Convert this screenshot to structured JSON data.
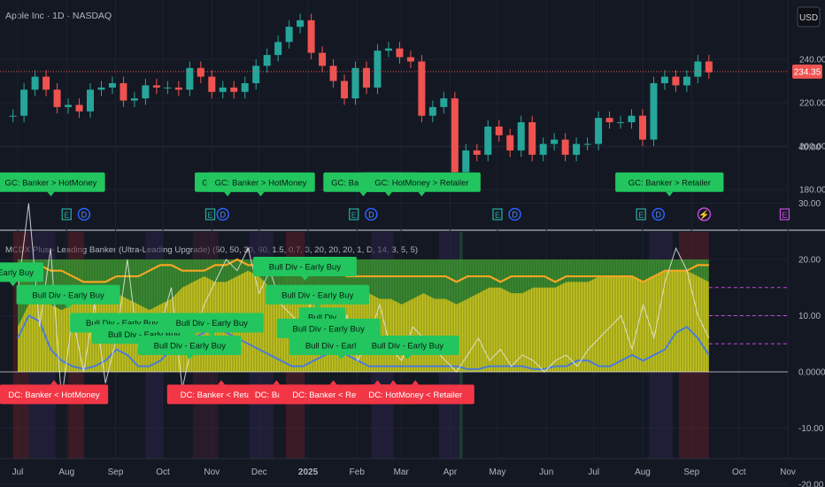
{
  "symbol_title": "Apple Inc · 1D · NASDAQ",
  "currency_button": "USD",
  "indicator_title": "MCDX Plus - Leading Banker (Ultra-Leading Upgrade) (50, 50, 30, 60, 1.5, 0.7, 3, 20, 20, 20, 1, D, 14, 3, 5, 5)",
  "colors": {
    "background": "#141823",
    "candle_up": "#26a69a",
    "candle_down": "#ef5350",
    "price_line": "#ef5350",
    "banker_fill": "#c9c41f",
    "banker_band": "#3f9b33",
    "hotmoney_line": "#f5a623",
    "retailer_line": "#4a7bd8",
    "gc_label": "#22c55e",
    "dc_label": "#f23645"
  },
  "event_icons": [
    {
      "type": "earnings-icon",
      "glyph": "E",
      "date": "2024-08-01"
    },
    {
      "type": "dividend-icon",
      "glyph": "D",
      "date": "2024-08-12"
    },
    {
      "type": "earnings-icon",
      "glyph": "E",
      "date": "2024-10-31"
    },
    {
      "type": "dividend-icon",
      "glyph": "D",
      "date": "2024-11-08"
    },
    {
      "type": "earnings-icon",
      "glyph": "E",
      "date": "2025-01-30"
    },
    {
      "type": "dividend-icon",
      "glyph": "D",
      "date": "2025-02-10"
    },
    {
      "type": "earnings-icon",
      "glyph": "E",
      "date": "2025-05-01"
    },
    {
      "type": "dividend-icon",
      "glyph": "D",
      "date": "2025-05-12"
    },
    {
      "type": "earnings-icon",
      "glyph": "E",
      "date": "2025-07-31"
    },
    {
      "type": "dividend-icon",
      "glyph": "D",
      "date": "2025-08-11"
    },
    {
      "type": "event-icon",
      "glyph": "⚡",
      "date": "2025-09-09"
    },
    {
      "type": "future-earnings-icon",
      "glyph": "E",
      "date": "2025-10-30"
    }
  ],
  "chart_data": [
    {
      "type": "candlestick",
      "title": "Apple Inc · 1D · NASDAQ",
      "x": [
        "2024-06-28",
        "2024-07-05",
        "2024-07-12",
        "2024-07-19",
        "2024-07-26",
        "2024-08-02",
        "2024-08-09",
        "2024-08-16",
        "2024-08-23",
        "2024-08-30",
        "2024-09-06",
        "2024-09-13",
        "2024-09-20",
        "2024-09-27",
        "2024-10-04",
        "2024-10-11",
        "2024-10-18",
        "2024-10-25",
        "2024-11-01",
        "2024-11-08",
        "2024-11-15",
        "2024-11-22",
        "2024-11-29",
        "2024-12-06",
        "2024-12-13",
        "2024-12-20",
        "2024-12-27",
        "2025-01-03",
        "2025-01-10",
        "2025-01-17",
        "2025-01-24",
        "2025-01-31",
        "2025-02-07",
        "2025-02-14",
        "2025-02-21",
        "2025-02-28",
        "2025-03-07",
        "2025-03-14",
        "2025-03-21",
        "2025-03-28",
        "2025-04-04",
        "2025-04-11",
        "2025-04-18",
        "2025-04-25",
        "2025-05-02",
        "2025-05-09",
        "2025-05-16",
        "2025-05-23",
        "2025-05-30",
        "2025-06-06",
        "2025-06-13",
        "2025-06-20",
        "2025-06-27",
        "2025-07-04",
        "2025-07-11",
        "2025-07-18",
        "2025-07-25",
        "2025-08-01",
        "2025-08-08",
        "2025-08-15",
        "2025-08-22",
        "2025-08-29",
        "2025-09-05",
        "2025-09-12"
      ],
      "close": [
        214,
        226,
        232,
        226,
        218,
        219,
        216,
        226,
        227,
        229,
        221,
        222,
        228,
        227,
        227,
        226,
        236,
        232,
        225,
        227,
        225,
        229,
        237,
        242,
        248,
        255,
        258,
        243,
        237,
        230,
        222,
        236,
        227,
        244,
        245,
        241,
        239,
        214,
        218,
        222,
        188,
        198,
        196,
        209,
        205,
        198,
        211,
        196,
        201,
        203,
        196,
        201,
        201,
        213,
        211,
        211,
        214,
        203,
        229,
        232,
        228,
        232,
        239,
        234
      ]
    },
    {
      "type": "indicator",
      "title": "MCDX Plus - Leading Banker (Ultra-Leading Upgrade) (50, 50, 30, 60, 1.5, 0.7, 3, 20, 20, 20, 1, D, 14, 3, 5, 5)",
      "x_ticks": [
        "Jul",
        "Aug",
        "Sep",
        "Oct",
        "Nov",
        "Dec",
        "2025",
        "Feb",
        "Mar",
        "Apr",
        "May",
        "Jun",
        "Jul",
        "Aug",
        "Sep",
        "Oct",
        "Nov"
      ],
      "banker": [
        8,
        12,
        13,
        12,
        11,
        12,
        13,
        13,
        14,
        14,
        13,
        12,
        11,
        12,
        13,
        15,
        16,
        17,
        16,
        16,
        17,
        18,
        17,
        15,
        14,
        13,
        13,
        12,
        13,
        14,
        15,
        15,
        14,
        13,
        13,
        12,
        13,
        14,
        13,
        13,
        12,
        13,
        14,
        15,
        15,
        14,
        14,
        15,
        15,
        15,
        16,
        16,
        16,
        17,
        17,
        17,
        17,
        16,
        17,
        18,
        18,
        18,
        17,
        16
      ],
      "hotmoney": [
        17,
        19,
        19,
        18,
        18,
        17,
        16,
        16,
        16,
        17,
        17,
        17,
        18,
        19,
        19,
        18,
        18,
        18,
        19,
        19,
        20,
        19,
        19,
        19,
        19,
        18,
        18,
        18,
        18,
        18,
        17,
        17,
        17,
        17,
        17,
        17,
        17,
        17,
        17,
        17,
        16,
        17,
        17,
        17,
        16,
        17,
        17,
        17,
        17,
        16,
        17,
        17,
        17,
        17,
        17,
        17,
        17,
        16,
        17,
        18,
        18,
        18,
        19,
        19
      ],
      "retailer": [
        6,
        10,
        9,
        4,
        2,
        1,
        0.5,
        1,
        2,
        4,
        3,
        1,
        1,
        2,
        4,
        5,
        6,
        7,
        8,
        7,
        6,
        5,
        4,
        3,
        2,
        1,
        1,
        2,
        3,
        4,
        3,
        2,
        1,
        1,
        1,
        1,
        1,
        1,
        1,
        1,
        1,
        0.5,
        0.5,
        1,
        1,
        1,
        1,
        0.5,
        0.5,
        1,
        1,
        2,
        2,
        1,
        1,
        2,
        3,
        2,
        3,
        4,
        7,
        8,
        6,
        3
      ],
      "banker_band": [
        0,
        20
      ],
      "dashed_levels": [
        15,
        10,
        5
      ],
      "y_ticks": [
        "40.00",
        "30.00",
        "20.00",
        "10.00",
        "0.0000",
        "-10.00",
        "-20.00"
      ],
      "labels": [
        {
          "text": "GC: Banker > HotMoney",
          "kind": "gc",
          "date": "2024-07-22",
          "level": 32
        },
        {
          "text": "- Early Buy",
          "kind": "gc",
          "date": "2024-06-28",
          "level": 16
        },
        {
          "text": "Bull Div - Early Buy",
          "kind": "gc",
          "date": "2024-08-02",
          "level": 12
        },
        {
          "text": "Bull Div - Early Buy",
          "kind": "gc",
          "date": "2024-09-05",
          "level": 7
        },
        {
          "text": "Bull Div - Early Buy",
          "kind": "gc",
          "date": "2024-09-19",
          "level": 5
        },
        {
          "text": "Bull Div - Early Buy",
          "kind": "gc",
          "date": "2024-10-18",
          "level": 3
        },
        {
          "text": "Bull Div - Early Buy",
          "kind": "gc",
          "date": "2024-11-01",
          "level": 7
        },
        {
          "text": "DC: Banker < HotMoney",
          "kind": "dc",
          "date": "2024-07-24",
          "level": -1
        },
        {
          "text": "GC: Banker >",
          "kind": "gc",
          "date": "2024-11-11",
          "level": 32
        },
        {
          "text": "GC: Banker > HotMoney",
          "kind": "gc",
          "date": "2024-12-02",
          "level": 32
        },
        {
          "text": "Bull Div - Early Buy",
          "kind": "gc",
          "date": "2024-12-30",
          "level": 17
        },
        {
          "text": "Bull Div - Early Buy",
          "kind": "gc",
          "date": "2025-01-07",
          "level": 12
        },
        {
          "text": "Bull Div",
          "kind": "gc",
          "date": "2025-01-10",
          "level": 8
        },
        {
          "text": "Bull Div - Early Buy",
          "kind": "gc",
          "date": "2025-01-14",
          "level": 6
        },
        {
          "text": "Bull Div - Early Buy",
          "kind": "gc",
          "date": "2025-01-22",
          "level": 3
        },
        {
          "text": "DC: Banker < Retailer",
          "kind": "dc",
          "date": "2024-11-07",
          "level": -1
        },
        {
          "text": "DC: Banker",
          "kind": "dc",
          "date": "2024-12-12",
          "level": -1
        },
        {
          "text": "DC: Banker < Retailer",
          "kind": "dc",
          "date": "2025-01-17",
          "level": -1
        },
        {
          "text": "GC: Banker > Re",
          "kind": "gc",
          "date": "2025-02-05",
          "level": 32
        },
        {
          "text": "GC: HotMone",
          "kind": "gc",
          "date": "2025-02-21",
          "level": 32
        },
        {
          "text": "GC: HotMoney > Retailer",
          "kind": "gc",
          "date": "2025-03-14",
          "level": 32
        },
        {
          "text": "Bull Div - Early Buy",
          "kind": "gc",
          "date": "2025-03-05",
          "level": 3
        },
        {
          "text": "DC:",
          "kind": "dc",
          "date": "2025-02-14",
          "level": -1
        },
        {
          "text": "DC: HotM",
          "kind": "dc",
          "date": "2025-02-24",
          "level": -1
        },
        {
          "text": "DC: HotMoney < Retailer",
          "kind": "dc",
          "date": "2025-03-10",
          "level": -1
        },
        {
          "text": "GC: Banker > Retailer",
          "kind": "gc",
          "date": "2025-08-18",
          "level": 32
        }
      ]
    }
  ],
  "price_axis": {
    "ticks": [
      "240.00",
      "220.00",
      "200.00",
      "180.00"
    ],
    "last_price": "234.35"
  }
}
